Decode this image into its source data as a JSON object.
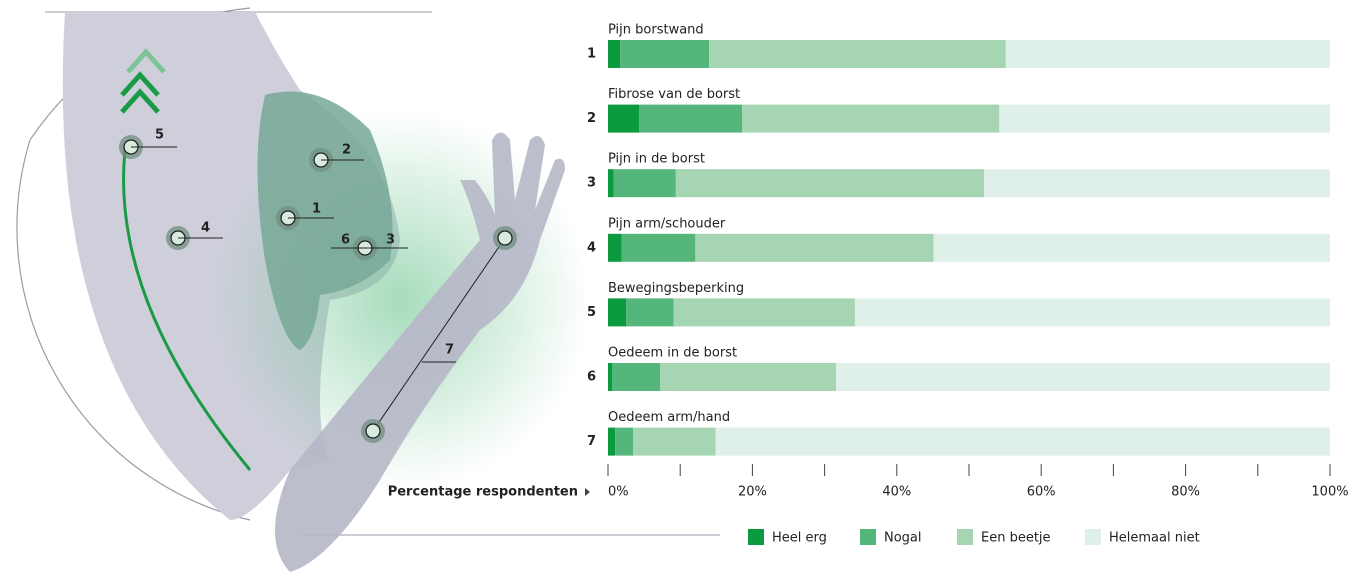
{
  "chart_data": {
    "type": "stacked_bar_horizontal",
    "categories": [
      "Pijn borstwand",
      "Fibrose van de borst",
      "Pijn in de borst",
      "Pijn arm/schouder",
      "Bewegingsbeperking",
      "Oedeem in de borst",
      "Oedeem arm/hand"
    ],
    "category_numbers": [
      "1",
      "2",
      "3",
      "4",
      "5",
      "6",
      "7"
    ],
    "series": [
      {
        "name": "Heel erg",
        "color": "#0b9a3d",
        "values": [
          1.7,
          4.3,
          0.8,
          1.9,
          2.5,
          0.6,
          1.0
        ]
      },
      {
        "name": "Nogal",
        "color": "#54b67b",
        "values": [
          12.3,
          14.3,
          8.6,
          10.2,
          6.6,
          6.6,
          2.5
        ]
      },
      {
        "name": "Een beetje",
        "color": "#a5d5b2",
        "values": [
          41.1,
          35.6,
          42.7,
          33.0,
          25.1,
          24.4,
          11.4
        ]
      },
      {
        "name": "Helemaal niet",
        "color": "#dff0e8",
        "values": [
          44.9,
          45.8,
          47.9,
          54.9,
          65.8,
          68.4,
          85.1
        ]
      }
    ],
    "xlabel": "Percentage respondenten",
    "xlim": [
      0,
      100
    ],
    "xticks": [
      {
        "value": 0,
        "label": "0%"
      },
      {
        "value": 20,
        "label": "20%"
      },
      {
        "value": 40,
        "label": "40%"
      },
      {
        "value": 60,
        "label": "60%"
      },
      {
        "value": 80,
        "label": "80%"
      },
      {
        "value": 100,
        "label": "100%"
      }
    ],
    "minor_xticks": [
      10,
      30,
      50,
      70,
      90
    ],
    "legend": "bottom"
  }
}
